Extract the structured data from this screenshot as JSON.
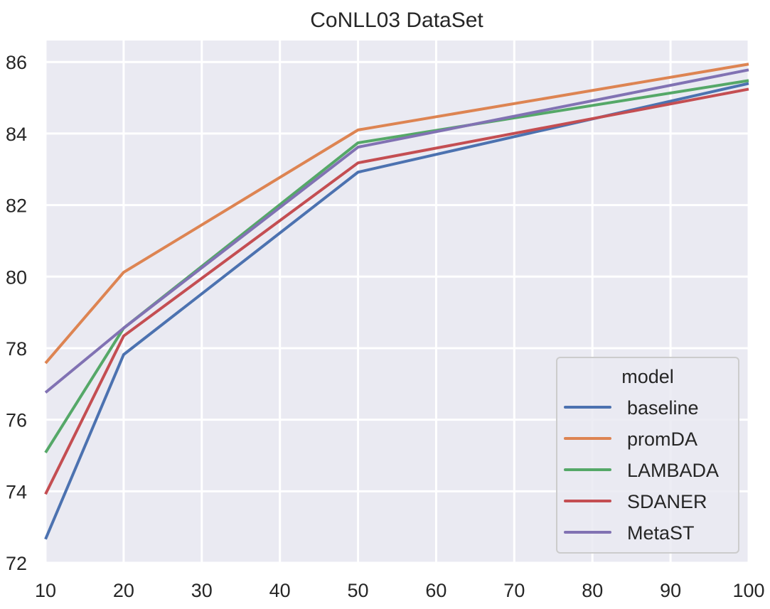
{
  "chart_data": {
    "type": "line",
    "title": "CoNLL03 DataSet",
    "xlabel": "",
    "ylabel": "",
    "x": [
      10,
      20,
      50,
      100
    ],
    "xlim": [
      10,
      100
    ],
    "ylim": [
      72,
      86.6
    ],
    "xticks": [
      10,
      20,
      30,
      40,
      50,
      60,
      70,
      80,
      90,
      100
    ],
    "yticks": [
      72,
      74,
      76,
      78,
      80,
      82,
      84,
      86
    ],
    "grid": true,
    "legend": {
      "title": "model",
      "placement": "lower-right"
    },
    "series": [
      {
        "name": "baseline",
        "color": "#4c72b0",
        "values": [
          72.66,
          77.82,
          82.92,
          85.4
        ]
      },
      {
        "name": "promDA",
        "color": "#dd8452",
        "values": [
          77.58,
          80.12,
          84.1,
          85.94
        ]
      },
      {
        "name": "LAMBADA",
        "color": "#55a868",
        "values": [
          75.08,
          78.56,
          83.74,
          85.48
        ]
      },
      {
        "name": "SDANER",
        "color": "#c44e52",
        "values": [
          73.92,
          78.34,
          83.18,
          85.24
        ]
      },
      {
        "name": "MetaST",
        "color": "#8172b3",
        "values": [
          76.76,
          78.56,
          83.62,
          85.78
        ]
      }
    ]
  },
  "colors": {
    "plot_background": "#eaeaf2",
    "grid": "#ffffff",
    "text": "#262626"
  }
}
